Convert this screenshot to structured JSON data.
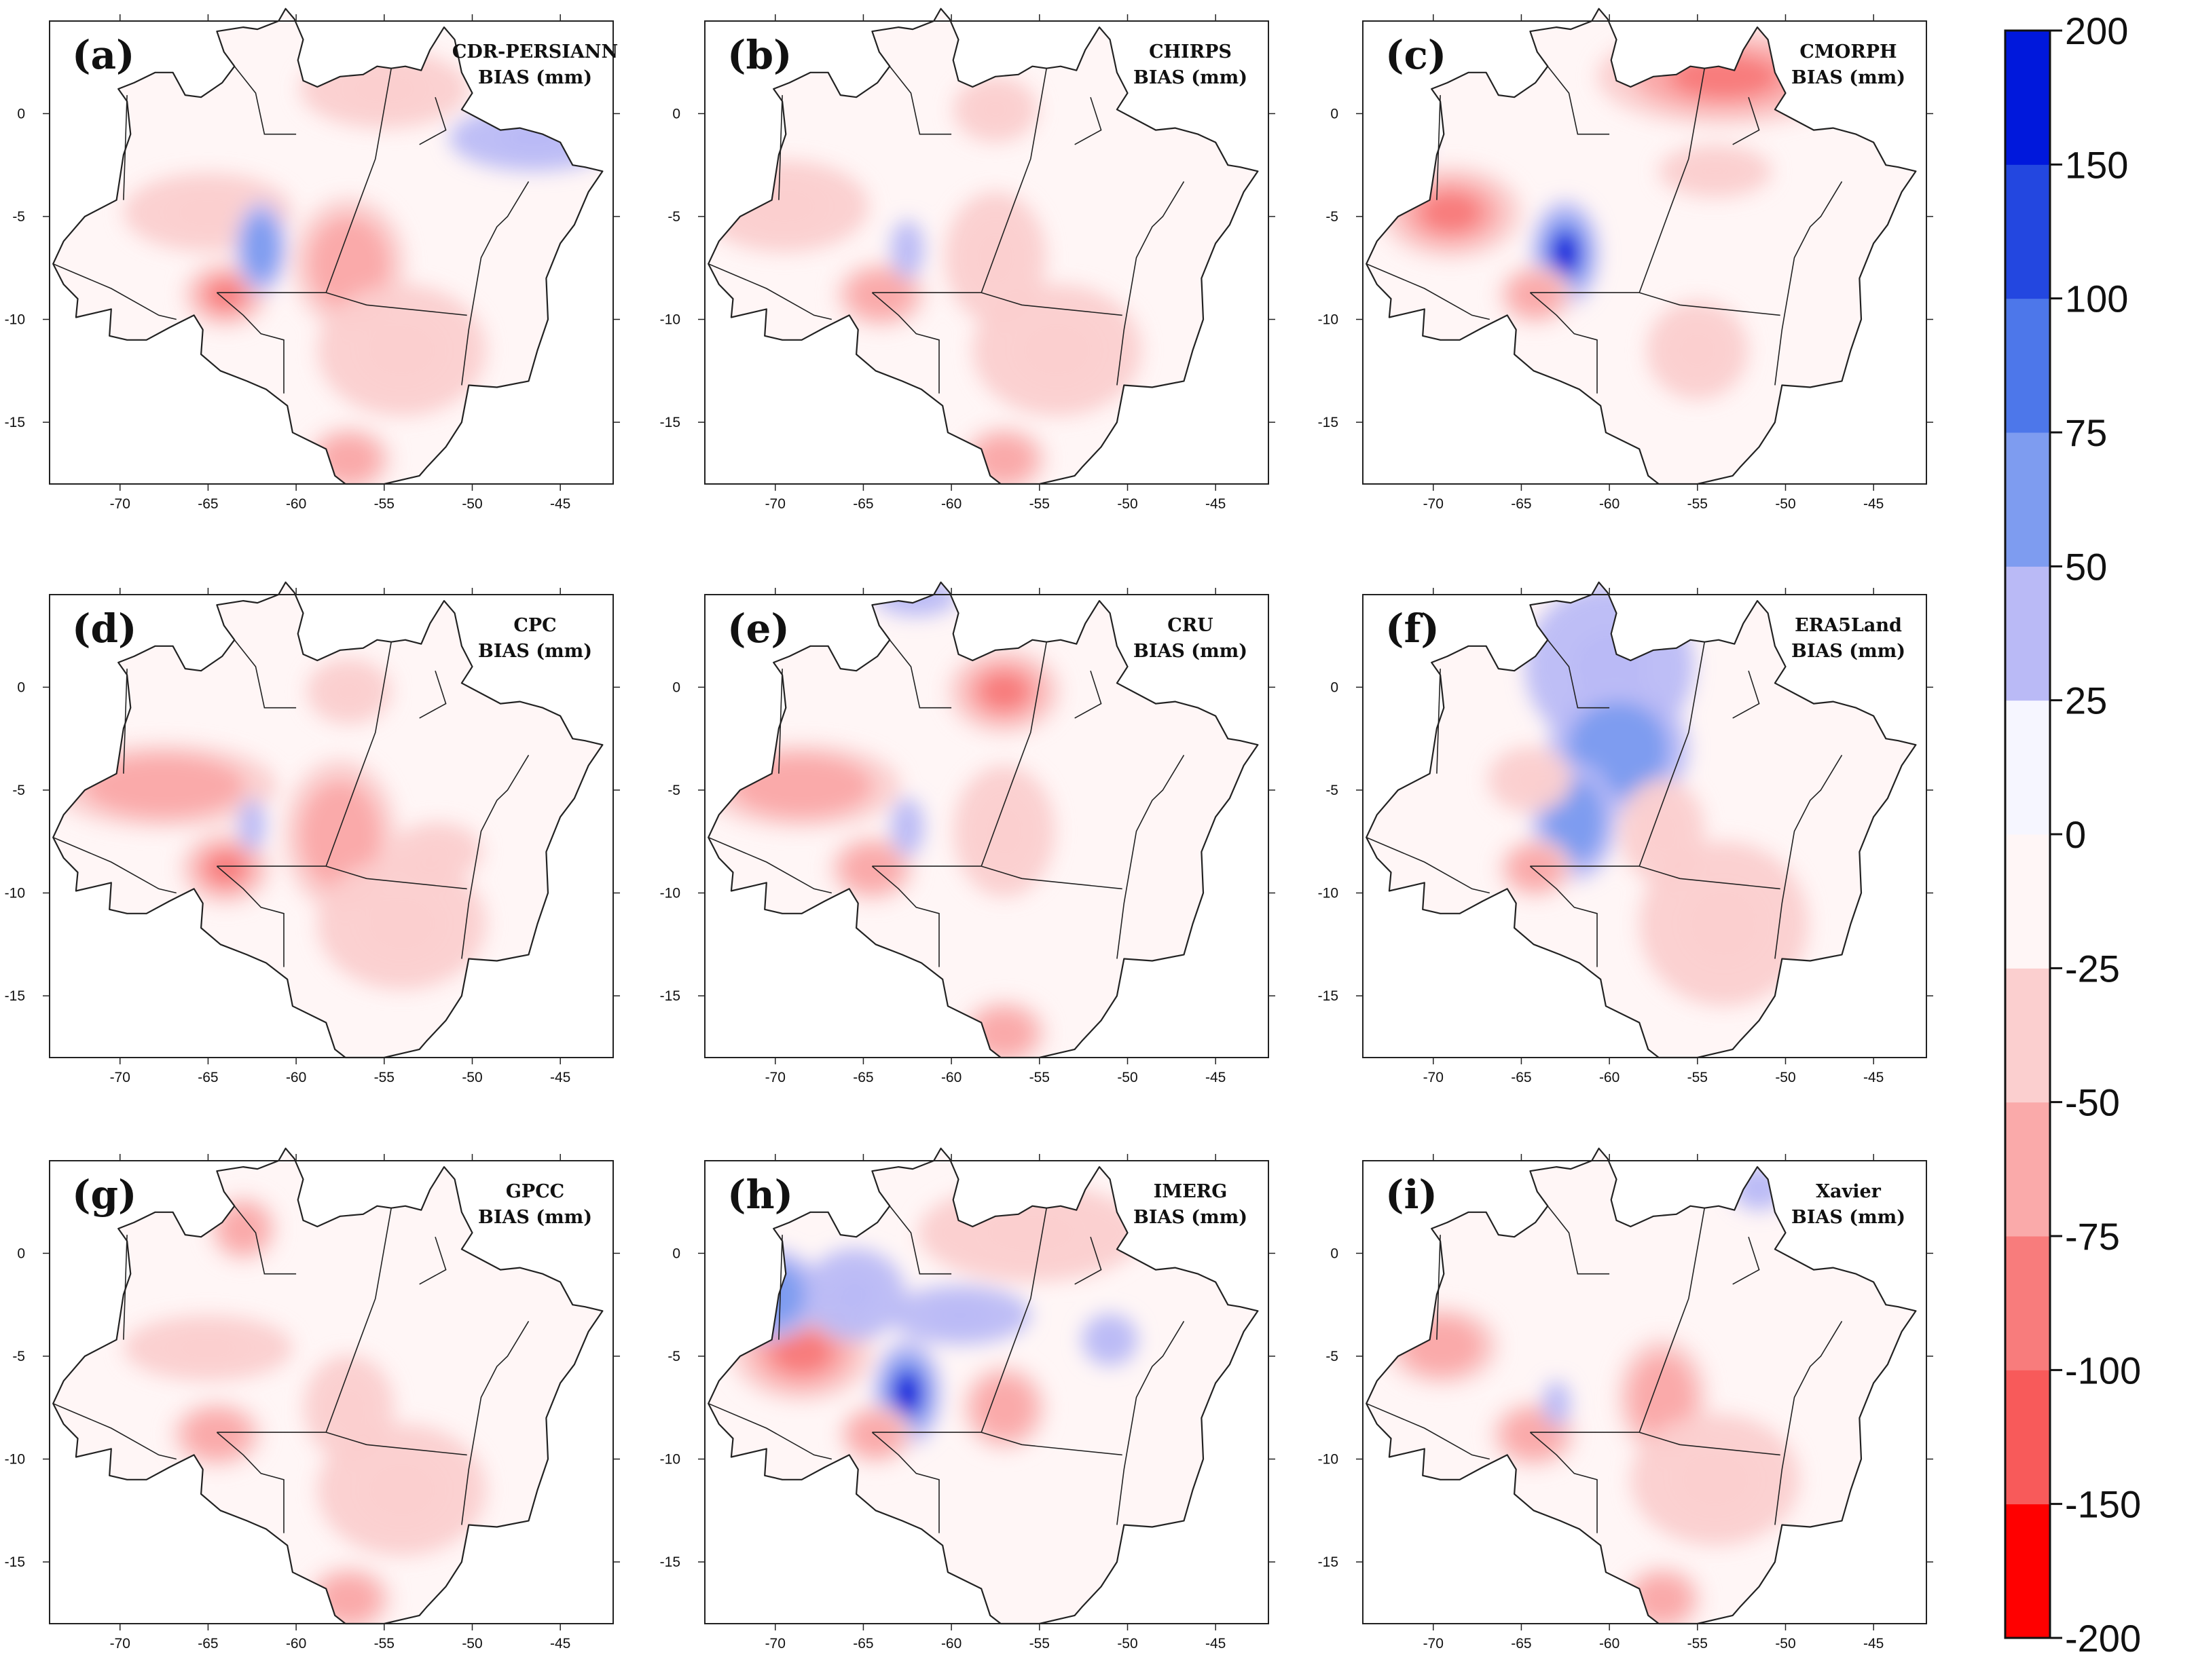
{
  "colors": {
    "bin_neg200_neg150": "#ff0000",
    "bin_neg150_neg100": "#f85a5a",
    "bin_neg100_neg75": "#f87c7c",
    "bin_neg75_neg50": "#faaaaa",
    "bin_neg50_neg25": "#fbcfcf",
    "bin_neg25_0": "#fff6f6",
    "bin_0_25": "#f6f6ff",
    "bin_25_50": "#babaf6",
    "bin_50_75": "#7e9cf0",
    "bin_75_100": "#4d77ea",
    "bin_100_150": "#2347e0",
    "bin_150_200": "#0018dc"
  },
  "axes": {
    "lon_ticks": [
      -70,
      -65,
      -60,
      -55,
      -50,
      -45
    ],
    "lat_ticks": [
      0,
      -5,
      -10,
      -15
    ],
    "lon_range": [
      -74,
      -42
    ],
    "lat_range": [
      -18,
      4.5
    ]
  },
  "legend": {
    "levels": [
      -200,
      -150,
      -100,
      -75,
      -50,
      -25,
      0,
      25,
      50,
      75,
      100,
      150,
      200
    ]
  },
  "panels": [
    {
      "letter": "(a)",
      "title": "CDR-PERSIANN",
      "subtitle": "BIAS (mm)",
      "anomalies": [
        {
          "lon": -65,
          "lat": -4.8,
          "rx": 3,
          "ry": 1.2,
          "v": -40
        },
        {
          "lon": -64,
          "lat": -8.8,
          "rx": 1.5,
          "ry": 1.0,
          "v": -85
        },
        {
          "lon": -62,
          "lat": -6.5,
          "rx": 0.9,
          "ry": 1.4,
          "v": 70
        },
        {
          "lon": -57,
          "lat": -7.3,
          "rx": 2,
          "ry": 2,
          "v": -55
        },
        {
          "lon": -55,
          "lat": 1.2,
          "rx": 3,
          "ry": 1.2,
          "v": -35
        },
        {
          "lon": -46.5,
          "lat": -1.2,
          "rx": 3,
          "ry": 1.0,
          "v": 35
        },
        {
          "lon": -54,
          "lat": -11.5,
          "rx": 3,
          "ry": 2,
          "v": -35
        },
        {
          "lon": -57,
          "lat": -16.8,
          "rx": 1.5,
          "ry": 1.0,
          "v": -60
        }
      ]
    },
    {
      "letter": "(b)",
      "title": "CHIRPS",
      "subtitle": "BIAS (mm)",
      "anomalies": [
        {
          "lon": -69.5,
          "lat": -4.5,
          "rx": 3,
          "ry": 1.4,
          "v": -45
        },
        {
          "lon": -64,
          "lat": -8.8,
          "rx": 1.6,
          "ry": 1.0,
          "v": -65
        },
        {
          "lon": -62.5,
          "lat": -6.6,
          "rx": 0.6,
          "ry": 0.9,
          "v": 30
        },
        {
          "lon": -57.5,
          "lat": -7.0,
          "rx": 1.8,
          "ry": 2.0,
          "v": -45
        },
        {
          "lon": -57.5,
          "lat": 0.2,
          "rx": 1.5,
          "ry": 1.0,
          "v": -45
        },
        {
          "lon": -54,
          "lat": -11.5,
          "rx": 3,
          "ry": 2,
          "v": -35
        },
        {
          "lon": -57,
          "lat": -16.8,
          "rx": 1.5,
          "ry": 1.0,
          "v": -60
        }
      ]
    },
    {
      "letter": "(c)",
      "title": "CMORPH",
      "subtitle": "BIAS (mm)",
      "anomalies": [
        {
          "lon": -69,
          "lat": -4.8,
          "rx": 2.5,
          "ry": 1.4,
          "v": -80
        },
        {
          "lon": -62.5,
          "lat": -6.8,
          "rx": 1.2,
          "ry": 1.6,
          "v": 175
        },
        {
          "lon": -53.5,
          "lat": 1.8,
          "rx": 4.5,
          "ry": 1.5,
          "v": -85
        },
        {
          "lon": -54,
          "lat": -2.8,
          "rx": 2,
          "ry": 0.8,
          "v": -50
        },
        {
          "lon": -72,
          "lat": -1.5,
          "rx": 1,
          "ry": 1.0,
          "v": 30
        },
        {
          "lon": -64.2,
          "lat": -8.8,
          "rx": 1.3,
          "ry": 0.9,
          "v": -65
        },
        {
          "lon": -55,
          "lat": -11.5,
          "rx": 1.8,
          "ry": 1.5,
          "v": -35
        }
      ]
    },
    {
      "letter": "(d)",
      "title": "CPC",
      "subtitle": "BIAS (mm)",
      "anomalies": [
        {
          "lon": -67.5,
          "lat": -4.8,
          "rx": 4,
          "ry": 1.3,
          "v": -70
        },
        {
          "lon": -64,
          "lat": -8.8,
          "rx": 1.6,
          "ry": 1.1,
          "v": -80
        },
        {
          "lon": -57.5,
          "lat": -7.2,
          "rx": 2,
          "ry": 2.3,
          "v": -75
        },
        {
          "lon": -57,
          "lat": -0.2,
          "rx": 1.5,
          "ry": 1.0,
          "v": -50
        },
        {
          "lon": -52,
          "lat": -8.0,
          "rx": 1.6,
          "ry": 0.9,
          "v": -45
        },
        {
          "lon": -54,
          "lat": -11.5,
          "rx": 3,
          "ry": 2,
          "v": -40
        },
        {
          "lon": -62.5,
          "lat": -6.7,
          "rx": 0.5,
          "ry": 0.8,
          "v": 30
        }
      ]
    },
    {
      "letter": "(e)",
      "title": "CRU",
      "subtitle": "BIAS (mm)",
      "anomalies": [
        {
          "lon": -68.5,
          "lat": -4.8,
          "rx": 3.5,
          "ry": 1.3,
          "v": -65
        },
        {
          "lon": -57,
          "lat": -0.2,
          "rx": 2,
          "ry": 1.3,
          "v": -85
        },
        {
          "lon": -64.5,
          "lat": -8.8,
          "rx": 1.5,
          "ry": 1.0,
          "v": -70
        },
        {
          "lon": -62.5,
          "lat": -6.8,
          "rx": 0.6,
          "ry": 0.9,
          "v": 30
        },
        {
          "lon": -57,
          "lat": -7.0,
          "rx": 1.8,
          "ry": 2.0,
          "v": -45
        },
        {
          "lon": -62,
          "lat": 4.4,
          "rx": 1.5,
          "ry": 0.6,
          "v": 35
        },
        {
          "lon": -57,
          "lat": -16.8,
          "rx": 1.5,
          "ry": 1.0,
          "v": -60
        }
      ]
    },
    {
      "letter": "(f)",
      "title": "ERA5Land",
      "subtitle": "BIAS (mm)",
      "anomalies": [
        {
          "lon": -60,
          "lat": 1.0,
          "rx": 3,
          "ry": 2.5,
          "v": 35
        },
        {
          "lon": -59.5,
          "lat": -3.0,
          "rx": 2.5,
          "ry": 2.0,
          "v": 55
        },
        {
          "lon": -62,
          "lat": -6.5,
          "rx": 1.5,
          "ry": 1.8,
          "v": 55
        },
        {
          "lon": -64.5,
          "lat": -4.5,
          "rx": 1.5,
          "ry": 1.0,
          "v": -45
        },
        {
          "lon": -53.5,
          "lat": -11.5,
          "rx": 3,
          "ry": 2.5,
          "v": -45
        },
        {
          "lon": -64.2,
          "lat": -8.8,
          "rx": 1.3,
          "ry": 0.9,
          "v": -70
        },
        {
          "lon": -57,
          "lat": -7.0,
          "rx": 1.5,
          "ry": 1.6,
          "v": -40
        }
      ]
    },
    {
      "letter": "(g)",
      "title": "GPCC",
      "subtitle": "BIAS (mm)",
      "anomalies": [
        {
          "lon": -63,
          "lat": 1.2,
          "rx": 1.2,
          "ry": 1.0,
          "v": -75
        },
        {
          "lon": -65,
          "lat": -4.6,
          "rx": 3,
          "ry": 1.0,
          "v": -45
        },
        {
          "lon": -64.5,
          "lat": -8.8,
          "rx": 1.6,
          "ry": 1.0,
          "v": -75
        },
        {
          "lon": -57,
          "lat": -7.5,
          "rx": 1.6,
          "ry": 1.6,
          "v": -50
        },
        {
          "lon": -57,
          "lat": -16.8,
          "rx": 1.5,
          "ry": 1.0,
          "v": -60
        },
        {
          "lon": -54,
          "lat": -11.5,
          "rx": 3,
          "ry": 2,
          "v": -35
        }
      ]
    },
    {
      "letter": "(h)",
      "title": "IMERG",
      "subtitle": "BIAS (mm)",
      "anomalies": [
        {
          "lon": -68.5,
          "lat": -4.8,
          "rx": 2.5,
          "ry": 1.5,
          "v": -80
        },
        {
          "lon": -62.5,
          "lat": -6.8,
          "rx": 1.2,
          "ry": 1.6,
          "v": 170
        },
        {
          "lon": -70.5,
          "lat": -2.0,
          "rx": 2,
          "ry": 1.4,
          "v": 60
        },
        {
          "lon": -65.5,
          "lat": -2.0,
          "rx": 1.8,
          "ry": 1.4,
          "v": 40
        },
        {
          "lon": -59.5,
          "lat": -3.0,
          "rx": 2.5,
          "ry": 0.9,
          "v": 35
        },
        {
          "lon": -51,
          "lat": -4.2,
          "rx": 1.0,
          "ry": 0.8,
          "v": 35
        },
        {
          "lon": -55.5,
          "lat": 1.0,
          "rx": 4,
          "ry": 1.5,
          "v": -40
        },
        {
          "lon": -64.3,
          "lat": -8.8,
          "rx": 1.3,
          "ry": 0.9,
          "v": -70
        },
        {
          "lon": -57,
          "lat": -7.5,
          "rx": 1.5,
          "ry": 1.3,
          "v": -60
        }
      ]
    },
    {
      "letter": "(i)",
      "title": "Xavier",
      "subtitle": "BIAS (mm)",
      "anomalies": [
        {
          "lon": -69.5,
          "lat": -4.5,
          "rx": 2,
          "ry": 1.2,
          "v": -60
        },
        {
          "lon": -64.3,
          "lat": -8.8,
          "rx": 1.5,
          "ry": 1.0,
          "v": -70
        },
        {
          "lon": -63,
          "lat": -7.3,
          "rx": 0.5,
          "ry": 0.7,
          "v": 35
        },
        {
          "lon": -57,
          "lat": -7.0,
          "rx": 1.6,
          "ry": 1.8,
          "v": -55
        },
        {
          "lon": -51.5,
          "lat": 3.2,
          "rx": 1.0,
          "ry": 0.7,
          "v": 35
        },
        {
          "lon": -54,
          "lat": -11.0,
          "rx": 3,
          "ry": 2,
          "v": -45
        },
        {
          "lon": -57,
          "lat": -16.8,
          "rx": 1.4,
          "ry": 1.0,
          "v": -60
        }
      ]
    }
  ]
}
